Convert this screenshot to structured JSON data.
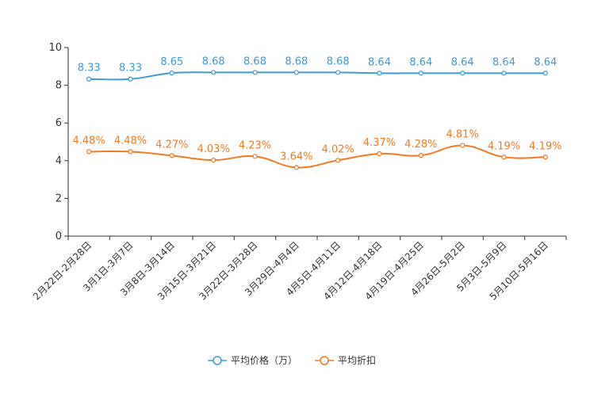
{
  "chart_data": {
    "type": "line",
    "title": "",
    "xlabel": "",
    "ylabel": "",
    "ylim": [
      0,
      10
    ],
    "yticks": [
      "0",
      "2",
      "4",
      "6",
      "8",
      "10"
    ],
    "categories": [
      "2月22日-2月28日",
      "3月1日-3月7日",
      "3月8日-3月14日",
      "3月15日-3月21日",
      "3月22日-3月28日",
      "3月29日-4月4日",
      "4月5日-4月11日",
      "4月12日-4月18日",
      "4月19日-4月25日",
      "4月26日-5月2日",
      "5月3日-5月9日",
      "5月10日-5月16日"
    ],
    "series": [
      {
        "name": "平均价格（万）",
        "color": "#3d9bd2",
        "values": [
          8.33,
          8.33,
          8.65,
          8.68,
          8.68,
          8.68,
          8.68,
          8.64,
          8.64,
          8.64,
          8.64,
          8.64
        ],
        "labels": [
          "8.33",
          "8.33",
          "8.65",
          "8.68",
          "8.68",
          "8.68",
          "8.68",
          "8.64",
          "8.64",
          "8.64",
          "8.64",
          "8.64"
        ]
      },
      {
        "name": "平均折扣",
        "color": "#f47920",
        "values": [
          4.48,
          4.48,
          4.27,
          4.03,
          4.23,
          3.64,
          4.02,
          4.37,
          4.28,
          4.81,
          4.19,
          4.19
        ],
        "labels": [
          "4.48%",
          "4.48%",
          "4.27%",
          "4.03%",
          "4.23%",
          "3.64%",
          "4.02%",
          "4.37%",
          "4.28%",
          "4.81%",
          "4.19%",
          "4.19%"
        ]
      }
    ],
    "legend_position": "bottom-center",
    "grid": false
  }
}
